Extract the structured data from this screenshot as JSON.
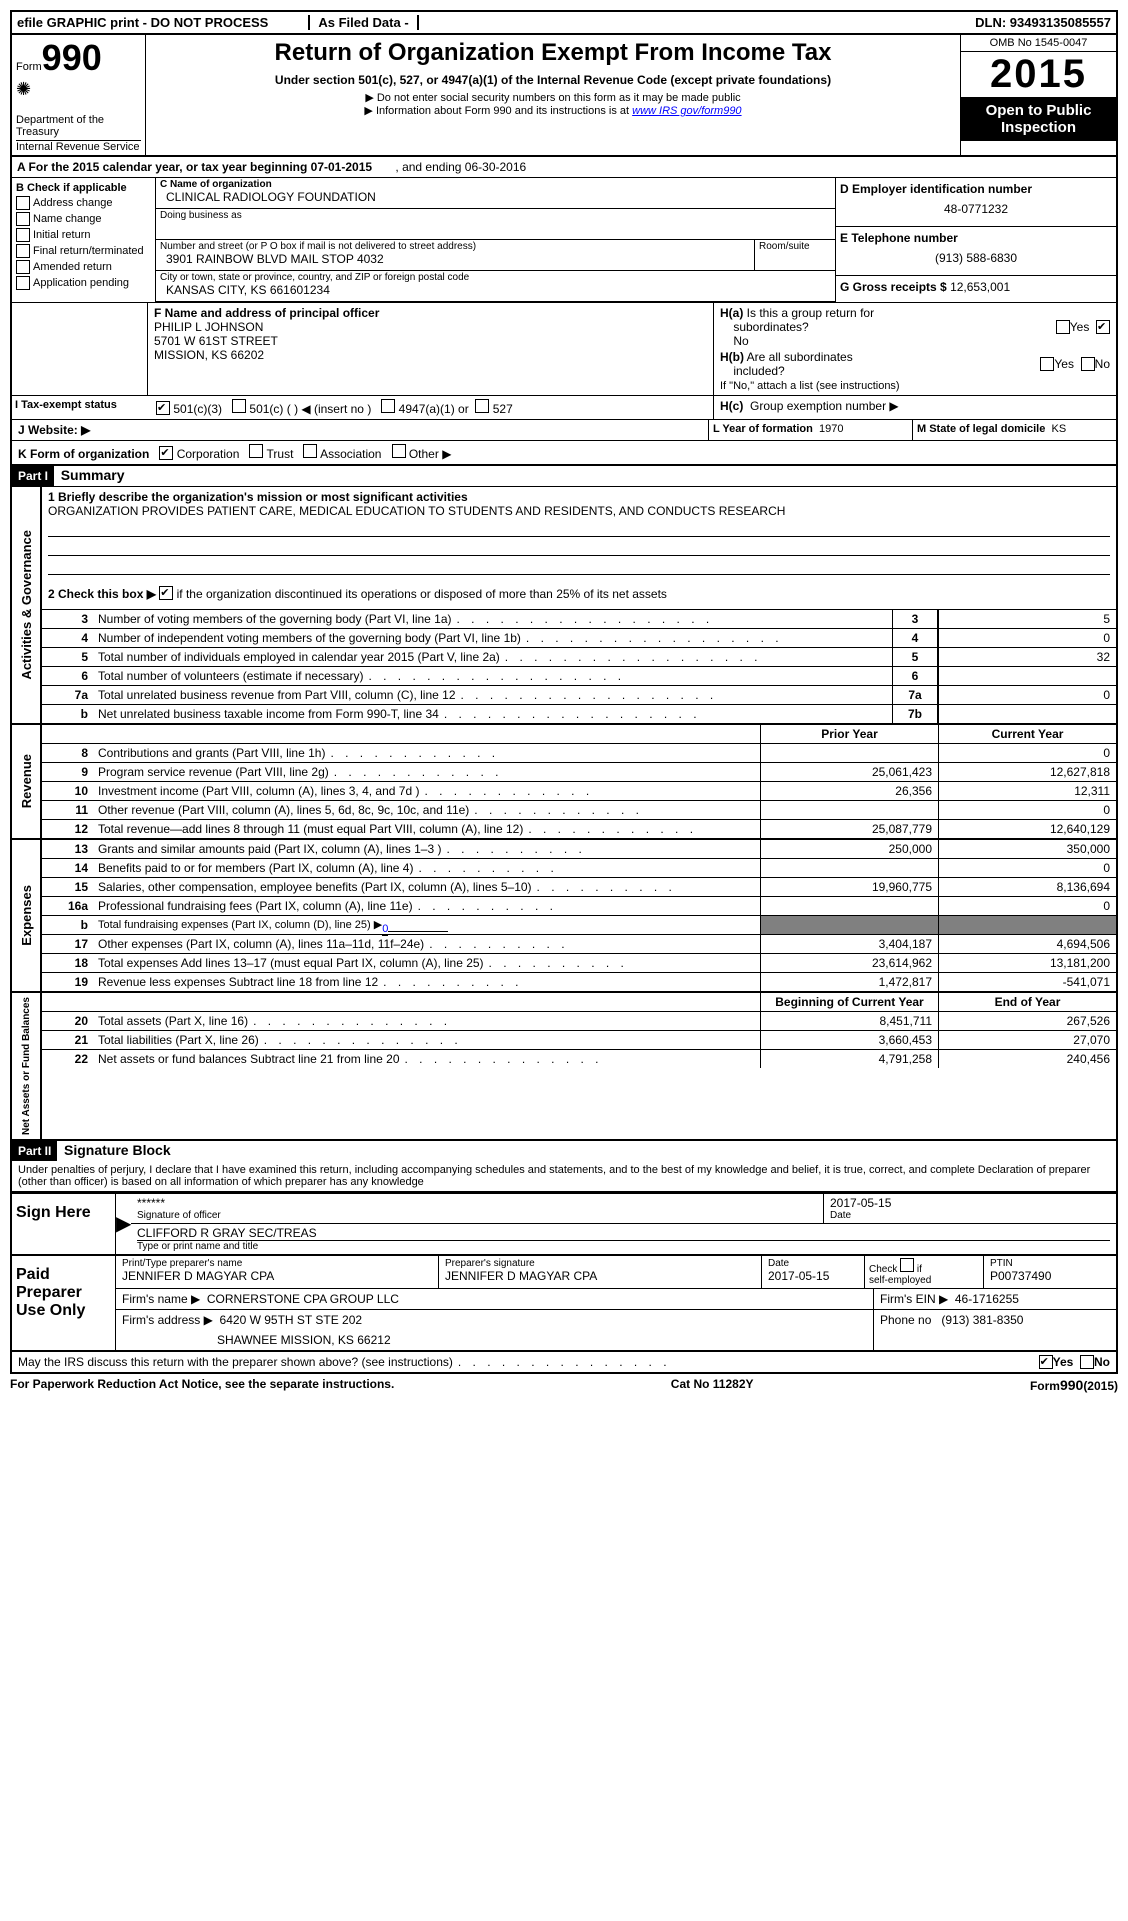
{
  "topbar": {
    "left": "efile GRAPHIC print - DO NOT PROCESS",
    "center": "As Filed Data -",
    "right": "DLN: 93493135085557"
  },
  "header": {
    "form_label": "Form",
    "form_number": "990",
    "dept": "Department of the Treasury",
    "irs": "Internal Revenue Service",
    "title": "Return of Organization Exempt From Income Tax",
    "subtitle": "Under section 501(c), 527, or 4947(a)(1) of the Internal Revenue Code (except private foundations)",
    "note1": "▶ Do not enter social security numbers on this form as it may be made public",
    "note2_prefix": "▶ Information about Form 990 and its instructions is at ",
    "note2_link": "www IRS gov/form990",
    "omb": "OMB No  1545-0047",
    "year": "2015",
    "open": "Open to Public Inspection"
  },
  "lineA": {
    "prefix": "A  For the 2015 calendar year, or tax year beginning 07-01-2015",
    "suffix": ", and ending 06-30-2016"
  },
  "sectionB": {
    "heading": "B  Check if applicable",
    "items": [
      "Address change",
      "Name change",
      "Initial return",
      "Final return/terminated",
      "Amended return",
      "Application pending"
    ]
  },
  "sectionC": {
    "name_label": "C  Name of organization",
    "name": "CLINICAL RADIOLOGY FOUNDATION",
    "dba_label": "Doing business as",
    "addr_label": "Number and street (or P O  box if mail is not delivered to street address)",
    "room_label": "Room/suite",
    "address": "3901 RAINBOW BLVD MAIL STOP 4032",
    "city_label": "City or town, state or province, country, and ZIP or foreign postal code",
    "city": "KANSAS CITY, KS  661601234"
  },
  "sectionD": {
    "label": "D Employer identification number",
    "value": "48-0771232"
  },
  "sectionE": {
    "label": "E Telephone number",
    "value": "(913) 588-6830"
  },
  "sectionG": {
    "label": "G Gross receipts $",
    "value": "12,653,001"
  },
  "sectionF": {
    "label": "F  Name and address of principal officer",
    "name": "PHILIP L JOHNSON",
    "street": "5701 W 61ST STREET",
    "city": "MISSION, KS  66202"
  },
  "sectionH": {
    "a": "H(a)  Is this a group return for subordinates?",
    "a_no": "No",
    "b": "H(b)  Are all subordinates included?",
    "b_note": "If \"No,\" attach a list  (see instructions)",
    "c": "H(c)  Group exemption number ▶"
  },
  "sectionI": {
    "label": "I     Tax-exempt status",
    "opt1": "501(c)(3)",
    "opt2": "501(c) (   ) ◀ (insert no )",
    "opt3": "4947(a)(1) or",
    "opt4": "527"
  },
  "sectionJ": {
    "label": "J    Website: ▶"
  },
  "sectionK": {
    "label": "K Form of organization",
    "opts": [
      "Corporation",
      "Trust",
      "Association",
      "Other ▶"
    ]
  },
  "sectionL": {
    "label": "L Year of formation",
    "value": "1970"
  },
  "sectionM": {
    "label": "M State of legal domicile",
    "value": "KS"
  },
  "part1": {
    "header": "Part I",
    "title": "Summary",
    "q1": "1 Briefly describe the organization's mission or most significant activities",
    "mission": "ORGANIZATION PROVIDES PATIENT CARE, MEDICAL EDUCATION TO STUDENTS AND RESIDENTS, AND CONDUCTS RESEARCH",
    "q2": "2  Check this box ▶",
    "q2_suffix": "if the organization discontinued its operations or disposed of more than 25% of its net assets",
    "side_gov": "Activities & Governance",
    "side_rev": "Revenue",
    "side_exp": "Expenses",
    "side_net": "Net Assets or Fund Balances",
    "col_prior": "Prior Year",
    "col_current": "Current Year",
    "col_begin": "Beginning of Current Year",
    "col_end": "End of Year",
    "rows_gov": [
      {
        "n": "3",
        "d": "Number of voting members of the governing body (Part VI, line 1a)",
        "k": "3",
        "v": "5"
      },
      {
        "n": "4",
        "d": "Number of independent voting members of the governing body (Part VI, line 1b)",
        "k": "4",
        "v": "0"
      },
      {
        "n": "5",
        "d": "Total number of individuals employed in calendar year 2015 (Part V, line 2a)",
        "k": "5",
        "v": "32"
      },
      {
        "n": "6",
        "d": "Total number of volunteers (estimate if necessary)",
        "k": "6",
        "v": ""
      },
      {
        "n": "7a",
        "d": "Total unrelated business revenue from Part VIII, column (C), line 12",
        "k": "7a",
        "v": "0"
      },
      {
        "n": "b",
        "d": "Net unrelated business taxable income from Form 990-T, line 34",
        "k": "7b",
        "v": ""
      }
    ],
    "rows_rev": [
      {
        "n": "8",
        "d": "Contributions and grants (Part VIII, line 1h)",
        "p": "",
        "c": "0"
      },
      {
        "n": "9",
        "d": "Program service revenue (Part VIII, line 2g)",
        "p": "25,061,423",
        "c": "12,627,818"
      },
      {
        "n": "10",
        "d": "Investment income (Part VIII, column (A), lines 3, 4, and 7d )",
        "p": "26,356",
        "c": "12,311"
      },
      {
        "n": "11",
        "d": "Other revenue (Part VIII, column (A), lines 5, 6d, 8c, 9c, 10c, and 11e)",
        "p": "",
        "c": "0"
      },
      {
        "n": "12",
        "d": "Total revenue—add lines 8 through 11 (must equal Part VIII, column (A), line 12)",
        "p": "25,087,779",
        "c": "12,640,129"
      }
    ],
    "rows_exp": [
      {
        "n": "13",
        "d": "Grants and similar amounts paid (Part IX, column (A), lines 1–3 )",
        "p": "250,000",
        "c": "350,000"
      },
      {
        "n": "14",
        "d": "Benefits paid to or for members (Part IX, column (A), line 4)",
        "p": "",
        "c": "0"
      },
      {
        "n": "15",
        "d": "Salaries, other compensation, employee benefits (Part IX, column (A), lines 5–10)",
        "p": "19,960,775",
        "c": "8,136,694"
      },
      {
        "n": "16a",
        "d": "Professional fundraising fees (Part IX, column (A), line 11e)",
        "p": "",
        "c": "0"
      },
      {
        "n": "b",
        "d": "Total fundraising expenses (Part IX, column (D), line 25) ▶",
        "sub": "0",
        "gray": true
      },
      {
        "n": "17",
        "d": "Other expenses (Part IX, column (A), lines 11a–11d, 11f–24e)",
        "p": "3,404,187",
        "c": "4,694,506"
      },
      {
        "n": "18",
        "d": "Total expenses  Add lines 13–17 (must equal Part IX, column (A), line 25)",
        "p": "23,614,962",
        "c": "13,181,200"
      },
      {
        "n": "19",
        "d": "Revenue less expenses  Subtract line 18 from line 12",
        "p": "1,472,817",
        "c": "-541,071"
      }
    ],
    "rows_net": [
      {
        "n": "20",
        "d": "Total assets (Part X, line 16)",
        "p": "8,451,711",
        "c": "267,526"
      },
      {
        "n": "21",
        "d": "Total liabilities (Part X, line 26)",
        "p": "3,660,453",
        "c": "27,070"
      },
      {
        "n": "22",
        "d": "Net assets or fund balances  Subtract line 21 from line 20",
        "p": "4,791,258",
        "c": "240,456"
      }
    ]
  },
  "part2": {
    "header": "Part II",
    "title": "Signature Block",
    "declaration": "Under penalties of perjury, I declare that I have examined this return, including accompanying schedules and statements, and to the best of my knowledge and belief, it is true, correct, and complete  Declaration of preparer (other than officer) is based on all information of which preparer has any knowledge",
    "sign_here": "Sign Here",
    "sig_label": "Signature of officer",
    "sig_stars": "******",
    "date_label": "Date",
    "date": "2017-05-15",
    "name_label": "Type or print name and title",
    "name": "CLIFFORD R GRAY SEC/TREAS",
    "paid": "Paid Preparer Use Only",
    "prep_name_label": "Print/Type preparer's name",
    "prep_name": "JENNIFER D MAGYAR CPA",
    "prep_sig_label": "Preparer's signature",
    "prep_sig": "JENNIFER D MAGYAR CPA",
    "prep_date_label": "Date",
    "prep_date": "2017-05-15",
    "check_if": "Check        if self-employed",
    "ptin_label": "PTIN",
    "ptin": "P00737490",
    "firm_name_label": "Firm's name      ▶",
    "firm_name": "CORNERSTONE CPA GROUP LLC",
    "firm_ein_label": "Firm's EIN ▶",
    "firm_ein": "46-1716255",
    "firm_addr_label": "Firm's address ▶",
    "firm_addr": "6420 W 95TH ST STE 202",
    "firm_city": "SHAWNEE MISSION, KS  66212",
    "phone_label": "Phone no",
    "phone": "(913) 381-8350",
    "may_irs": "May the IRS discuss this return with the preparer shown above? (see instructions)",
    "yes": "Yes",
    "no": "No"
  },
  "footer": {
    "left": "For Paperwork Reduction Act Notice, see the separate instructions.",
    "center": "Cat No  11282Y",
    "right": "Form 990 (2015)"
  }
}
